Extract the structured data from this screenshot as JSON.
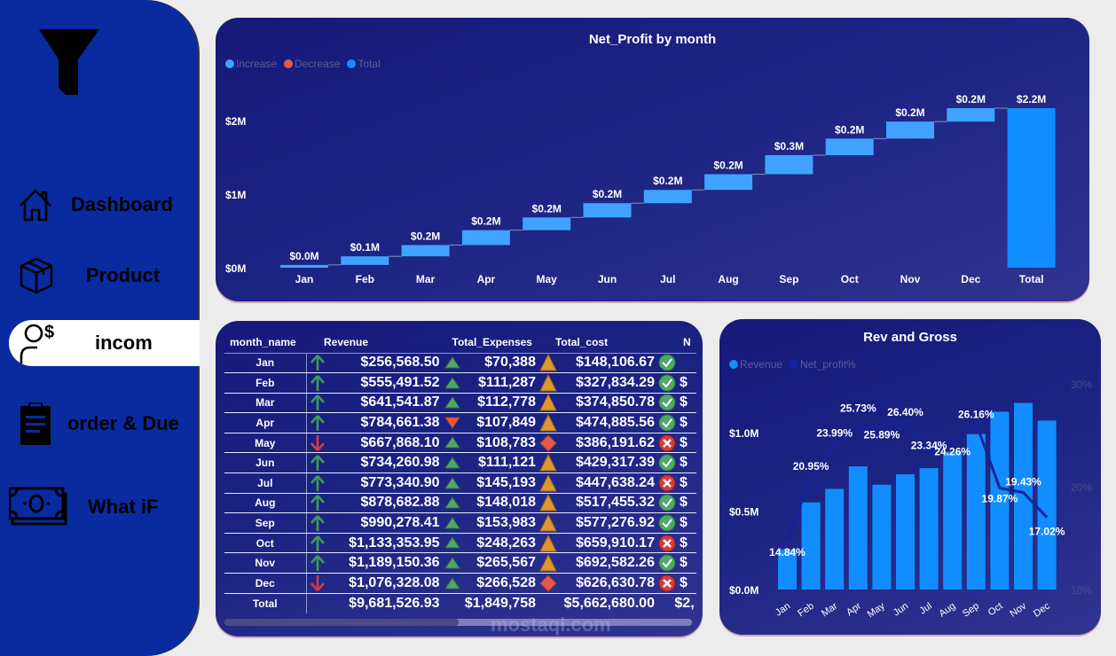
{
  "sidebar": {
    "logo_icon": "funnel-icon",
    "items": [
      {
        "label": "Dashboard",
        "icon": "home-icon",
        "active": false
      },
      {
        "label": "Product",
        "icon": "box-icon",
        "active": false
      },
      {
        "label": "incom",
        "icon": "user-dollar-icon",
        "active": true
      },
      {
        "label": "order & Due",
        "icon": "clipboard-icon",
        "active": false
      },
      {
        "label": "What iF",
        "icon": "money-icon",
        "active": false
      }
    ]
  },
  "colors": {
    "increase": "#3fa3ff",
    "decrease": "#e8584a",
    "total": "#118dff",
    "revenue_bar": "#118dff",
    "profit_line": "#12239e",
    "green_icon": "#3e9a5a",
    "red_icon": "#d83b3b",
    "amber_icon": "#e0962a"
  },
  "chart_data": [
    {
      "type": "waterfall",
      "title": "Net_Profit by month",
      "legend": [
        "Increase",
        "Decrease",
        "Total"
      ],
      "legend_position": "top-left",
      "categories": [
        "Jan",
        "Feb",
        "Mar",
        "Apr",
        "May",
        "Jun",
        "Jul",
        "Aug",
        "Sep",
        "Oct",
        "Nov",
        "Dec",
        "Total"
      ],
      "values": [
        38074,
        116370,
        153913,
        201927,
        172893,
        193823,
        180510,
        213210,
        259016,
        225181,
        231001,
        183169
      ],
      "total": 2169089,
      "data_labels": [
        "$0.0M",
        "$0.1M",
        "$0.2M",
        "$0.2M",
        "$0.2M",
        "$0.2M",
        "$0.2M",
        "$0.2M",
        "$0.3M",
        "$0.2M",
        "$0.2M",
        "$0.2M",
        "$2.2M"
      ],
      "y_ticks": [
        "$0M",
        "$1M",
        "$2M"
      ],
      "ylim": [
        0,
        2200000
      ],
      "xlabel": "",
      "ylabel": "",
      "grid": false
    },
    {
      "type": "bar+line",
      "title": "Rev and Gross",
      "legend": [
        "Revenue",
        "Net_profit%"
      ],
      "legend_position": "top-left",
      "categories": [
        "Jan",
        "Feb",
        "Mar",
        "Apr",
        "May",
        "Jun",
        "Jul",
        "Aug",
        "Sep",
        "Oct",
        "Nov",
        "Dec"
      ],
      "series": [
        {
          "name": "Revenue",
          "type": "bar",
          "axis": "left",
          "values": [
            256568.5,
            555491.52,
            641541.87,
            784661.38,
            667868.1,
            734260.98,
            773340.9,
            878682.88,
            990278.41,
            1133353.95,
            1189150.36,
            1076328.08
          ]
        },
        {
          "name": "Net_profit%",
          "type": "line",
          "axis": "right",
          "values": [
            14.84,
            20.95,
            23.99,
            25.73,
            25.89,
            26.4,
            23.34,
            24.26,
            26.16,
            19.87,
            19.43,
            17.02
          ],
          "labels": [
            "14.84%",
            "20.95%",
            "23.99%",
            "25.73%",
            "25.89%",
            "26.40%",
            "23.34%",
            "24.26%",
            "26.16%",
            "19.87%",
            "19.43%",
            "17.02%"
          ]
        }
      ],
      "y_left_ticks": [
        "$0.0M",
        "$0.5M",
        "$1.0M"
      ],
      "y_left_lim": [
        0,
        1.3
      ],
      "y_right_ticks": [
        "10%",
        "20%",
        "30%"
      ],
      "y_right_lim": [
        10,
        30
      ],
      "grid": false
    }
  ],
  "table": {
    "columns": [
      "month_name",
      "Revenue",
      "Total_Expenses",
      "Total_cost",
      "N"
    ],
    "rows": [
      {
        "month": "Jan",
        "rev_icon": "up",
        "revenue": "$256,568.50",
        "exp_icon": "tri-up",
        "expenses": "$70,388",
        "cost_icon": "tri-amber",
        "cost": "$148,106.67",
        "np_icon": "check",
        "np": ""
      },
      {
        "month": "Feb",
        "rev_icon": "up",
        "revenue": "$555,491.52",
        "exp_icon": "tri-up",
        "expenses": "$111,287",
        "cost_icon": "tri-amber",
        "cost": "$327,834.29",
        "np_icon": "check",
        "np": "$"
      },
      {
        "month": "Mar",
        "rev_icon": "up",
        "revenue": "$641,541.87",
        "exp_icon": "tri-up",
        "expenses": "$112,778",
        "cost_icon": "tri-amber",
        "cost": "$374,850.78",
        "np_icon": "check",
        "np": "$"
      },
      {
        "month": "Apr",
        "rev_icon": "up",
        "revenue": "$784,661.38",
        "exp_icon": "tri-down",
        "expenses": "$107,849",
        "cost_icon": "tri-amber",
        "cost": "$474,885.56",
        "np_icon": "check",
        "np": "$"
      },
      {
        "month": "May",
        "rev_icon": "down",
        "revenue": "$667,868.10",
        "exp_icon": "tri-up",
        "expenses": "$108,783",
        "cost_icon": "diamond",
        "cost": "$386,191.62",
        "np_icon": "cross",
        "np": "$"
      },
      {
        "month": "Jun",
        "rev_icon": "up",
        "revenue": "$734,260.98",
        "exp_icon": "tri-up",
        "expenses": "$111,121",
        "cost_icon": "tri-amber",
        "cost": "$429,317.39",
        "np_icon": "check",
        "np": "$"
      },
      {
        "month": "Jul",
        "rev_icon": "up",
        "revenue": "$773,340.90",
        "exp_icon": "tri-up",
        "expenses": "$145,193",
        "cost_icon": "tri-amber",
        "cost": "$447,638.24",
        "np_icon": "cross",
        "np": "$"
      },
      {
        "month": "Aug",
        "rev_icon": "up",
        "revenue": "$878,682.88",
        "exp_icon": "tri-up",
        "expenses": "$148,018",
        "cost_icon": "tri-amber",
        "cost": "$517,455.32",
        "np_icon": "check",
        "np": "$"
      },
      {
        "month": "Sep",
        "rev_icon": "up",
        "revenue": "$990,278.41",
        "exp_icon": "tri-up",
        "expenses": "$153,983",
        "cost_icon": "tri-amber",
        "cost": "$577,276.92",
        "np_icon": "check",
        "np": "$"
      },
      {
        "month": "Oct",
        "rev_icon": "up",
        "revenue": "$1,133,353.95",
        "exp_icon": "tri-up",
        "expenses": "$248,263",
        "cost_icon": "tri-amber",
        "cost": "$659,910.17",
        "np_icon": "cross",
        "np": "$"
      },
      {
        "month": "Nov",
        "rev_icon": "up",
        "revenue": "$1,189,150.36",
        "exp_icon": "tri-up",
        "expenses": "$265,567",
        "cost_icon": "tri-amber",
        "cost": "$692,582.26",
        "np_icon": "check",
        "np": "$"
      },
      {
        "month": "Dec",
        "rev_icon": "down",
        "revenue": "$1,076,328.08",
        "exp_icon": "tri-up",
        "expenses": "$266,528",
        "cost_icon": "diamond",
        "cost": "$626,630.78",
        "np_icon": "cross",
        "np": "$"
      }
    ],
    "total": {
      "month": "Total",
      "revenue": "$9,681,526.93",
      "expenses": "$1,849,758",
      "cost": "$5,662,680.00",
      "np": "$2,"
    },
    "scroll_position": 0.5
  },
  "watermark": {
    "text": "mostaql.com"
  }
}
